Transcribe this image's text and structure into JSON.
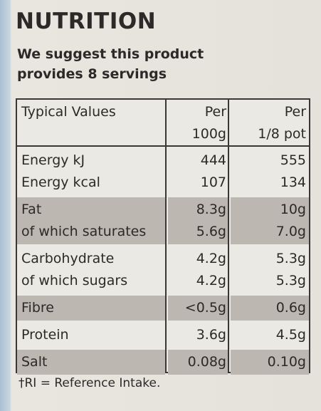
{
  "title": "NUTRITION",
  "subtitle": "We suggest this product provides 8 servings",
  "table": {
    "header": [
      "Typical Values",
      "Per\n100g",
      "Per\n1/8 pot"
    ],
    "groups": [
      {
        "rows": [
          [
            "Energy kJ",
            "444",
            "555"
          ],
          [
            "Energy kcal",
            "107",
            "134"
          ]
        ]
      },
      {
        "rows": [
          [
            "Fat",
            "8.3g",
            "10g"
          ],
          [
            "of which saturates",
            "5.6g",
            "7.0g"
          ]
        ]
      },
      {
        "rows": [
          [
            "Carbohydrate",
            "4.2g",
            "5.3g"
          ],
          [
            "of which sugars",
            "4.2g",
            "5.3g"
          ]
        ]
      },
      {
        "rows": [
          [
            "Fibre",
            "<0.5g",
            "0.6g"
          ]
        ]
      },
      {
        "rows": [
          [
            "Protein",
            "3.6g",
            "4.5g"
          ]
        ]
      },
      {
        "rows": [
          [
            "Salt",
            "0.08g",
            "0.10g"
          ]
        ]
      }
    ]
  },
  "footnote": "†RI = Reference Intake."
}
